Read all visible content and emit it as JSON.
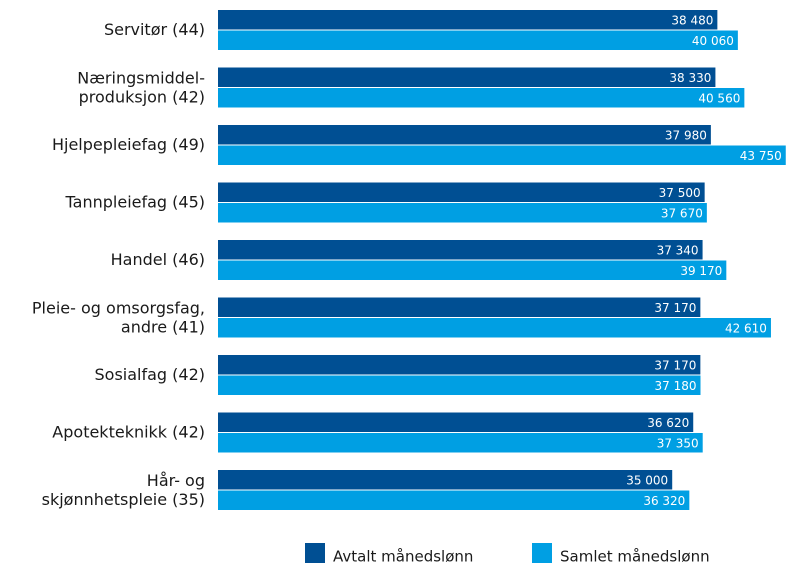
{
  "chart_data": {
    "type": "barh",
    "categories": [
      "Servitør (44)",
      "Næringsmiddel-\nproduksjon (42)",
      "Hjelpepleiefag (49)",
      "Tannpleiefag (45)",
      "Handel (46)",
      "Pleie- og omsorgsfag,\nandre (41)",
      "Sosialfag (42)",
      "Apotekteknikk (42)",
      "Hår- og\nskjønnhetspleie (35)"
    ],
    "series": [
      {
        "name": "Avtalt månedslønn",
        "color": "#004f93",
        "values": [
          38480,
          38330,
          37980,
          37500,
          37340,
          37170,
          37170,
          36620,
          35000
        ],
        "value_labels": [
          "38 480",
          "38 330",
          "37 980",
          "37 500",
          "37 340",
          "37 170",
          "37 170",
          "36 620",
          "35 000"
        ]
      },
      {
        "name": "Samlet månedslønn",
        "color": "#009fe3",
        "values": [
          40060,
          40560,
          43750,
          37670,
          39170,
          42610,
          37180,
          37350,
          36320
        ],
        "value_labels": [
          "40 060",
          "40 560",
          "43 750",
          "37 670",
          "39 170",
          "42 610",
          "37 180",
          "37 350",
          "36 320"
        ]
      }
    ],
    "xlim": [
      0,
      44000
    ],
    "legend": "bottom"
  }
}
